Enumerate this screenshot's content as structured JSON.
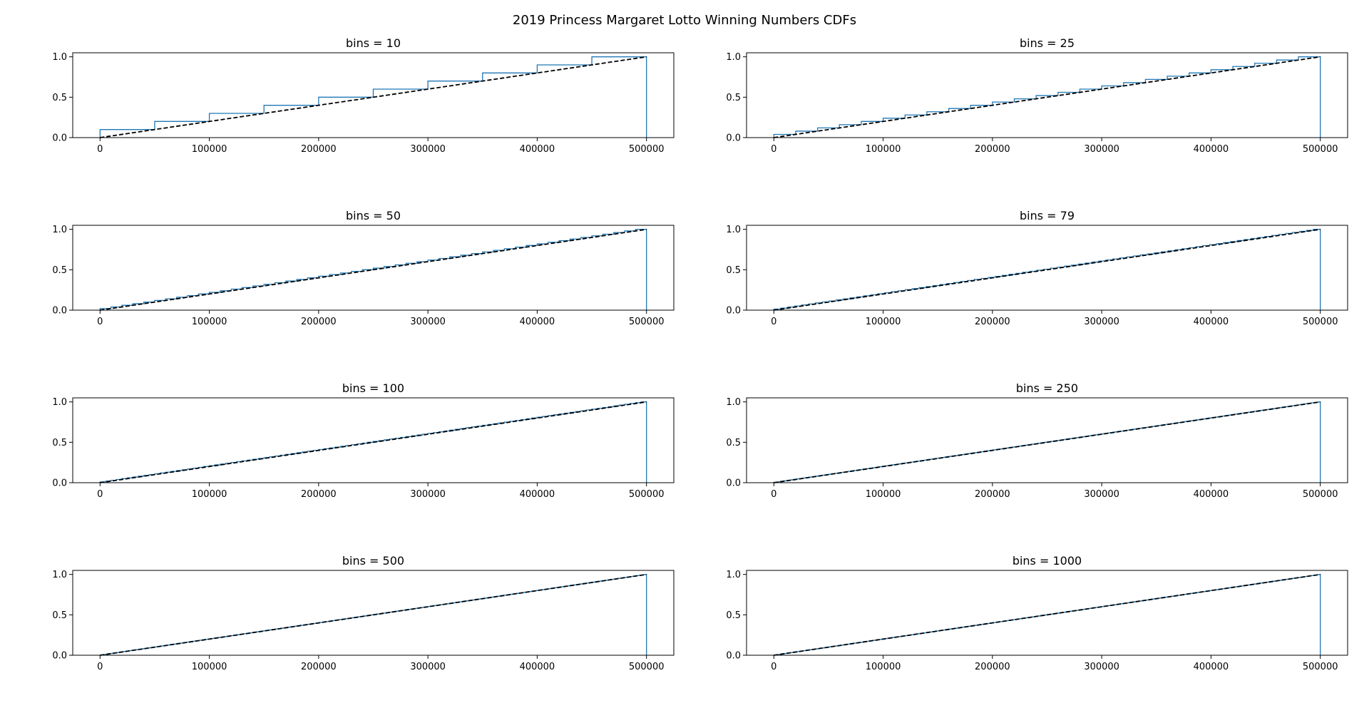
{
  "figure": {
    "title": "2019 Princess Margaret Lotto Winning Numbers CDFs"
  },
  "colors": {
    "step": "#1f77b4",
    "reference": "#000000",
    "axes": "#000000"
  },
  "chart_data": [
    {
      "type": "line",
      "title": "bins = 10",
      "bins": 10,
      "xlim": [
        -25000,
        525000
      ],
      "ylim": [
        0,
        1.05
      ],
      "xticks": [
        0,
        100000,
        200000,
        300000,
        400000,
        500000
      ],
      "yticks": [
        0.0,
        0.5,
        1.0
      ],
      "series": [
        {
          "style": "step-cdf",
          "x": [
            0,
            500000
          ],
          "y": [
            0,
            1
          ]
        },
        {
          "style": "dashed",
          "x": [
            0,
            500000
          ],
          "y": [
            0,
            1
          ]
        }
      ]
    },
    {
      "type": "line",
      "title": "bins = 25",
      "bins": 25,
      "xlim": [
        -25000,
        525000
      ],
      "ylim": [
        0,
        1.05
      ],
      "xticks": [
        0,
        100000,
        200000,
        300000,
        400000,
        500000
      ],
      "yticks": [
        0.0,
        0.5,
        1.0
      ],
      "series": [
        {
          "style": "step-cdf",
          "x": [
            0,
            500000
          ],
          "y": [
            0,
            1
          ]
        },
        {
          "style": "dashed",
          "x": [
            0,
            500000
          ],
          "y": [
            0,
            1
          ]
        }
      ]
    },
    {
      "type": "line",
      "title": "bins = 50",
      "bins": 50,
      "xlim": [
        -25000,
        525000
      ],
      "ylim": [
        0,
        1.05
      ],
      "xticks": [
        0,
        100000,
        200000,
        300000,
        400000,
        500000
      ],
      "yticks": [
        0.0,
        0.5,
        1.0
      ],
      "series": [
        {
          "style": "step-cdf",
          "x": [
            0,
            500000
          ],
          "y": [
            0,
            1
          ]
        },
        {
          "style": "dashed",
          "x": [
            0,
            500000
          ],
          "y": [
            0,
            1
          ]
        }
      ]
    },
    {
      "type": "line",
      "title": "bins = 79",
      "bins": 79,
      "xlim": [
        -25000,
        525000
      ],
      "ylim": [
        0,
        1.05
      ],
      "xticks": [
        0,
        100000,
        200000,
        300000,
        400000,
        500000
      ],
      "yticks": [
        0.0,
        0.5,
        1.0
      ],
      "series": [
        {
          "style": "step-cdf",
          "x": [
            0,
            500000
          ],
          "y": [
            0,
            1
          ]
        },
        {
          "style": "dashed",
          "x": [
            0,
            500000
          ],
          "y": [
            0,
            1
          ]
        }
      ]
    },
    {
      "type": "line",
      "title": "bins = 100",
      "bins": 100,
      "xlim": [
        -25000,
        525000
      ],
      "ylim": [
        0,
        1.05
      ],
      "xticks": [
        0,
        100000,
        200000,
        300000,
        400000,
        500000
      ],
      "yticks": [
        0.0,
        0.5,
        1.0
      ],
      "series": [
        {
          "style": "step-cdf",
          "x": [
            0,
            500000
          ],
          "y": [
            0,
            1
          ]
        },
        {
          "style": "dashed",
          "x": [
            0,
            500000
          ],
          "y": [
            0,
            1
          ]
        }
      ]
    },
    {
      "type": "line",
      "title": "bins = 250",
      "bins": 250,
      "xlim": [
        -25000,
        525000
      ],
      "ylim": [
        0,
        1.05
      ],
      "xticks": [
        0,
        100000,
        200000,
        300000,
        400000,
        500000
      ],
      "yticks": [
        0.0,
        0.5,
        1.0
      ],
      "series": [
        {
          "style": "step-cdf",
          "x": [
            0,
            500000
          ],
          "y": [
            0,
            1
          ]
        },
        {
          "style": "dashed",
          "x": [
            0,
            500000
          ],
          "y": [
            0,
            1
          ]
        }
      ]
    },
    {
      "type": "line",
      "title": "bins = 500",
      "bins": 500,
      "xlim": [
        -25000,
        525000
      ],
      "ylim": [
        0,
        1.05
      ],
      "xticks": [
        0,
        100000,
        200000,
        300000,
        400000,
        500000
      ],
      "yticks": [
        0.0,
        0.5,
        1.0
      ],
      "series": [
        {
          "style": "step-cdf",
          "x": [
            0,
            500000
          ],
          "y": [
            0,
            1
          ]
        },
        {
          "style": "dashed",
          "x": [
            0,
            500000
          ],
          "y": [
            0,
            1
          ]
        }
      ]
    },
    {
      "type": "line",
      "title": "bins = 1000",
      "bins": 1000,
      "xlim": [
        -25000,
        525000
      ],
      "ylim": [
        0,
        1.05
      ],
      "xticks": [
        0,
        100000,
        200000,
        300000,
        400000,
        500000
      ],
      "yticks": [
        0.0,
        0.5,
        1.0
      ],
      "series": [
        {
          "style": "step-cdf",
          "x": [
            0,
            500000
          ],
          "y": [
            0,
            1
          ]
        },
        {
          "style": "dashed",
          "x": [
            0,
            500000
          ],
          "y": [
            0,
            1
          ]
        }
      ]
    }
  ]
}
